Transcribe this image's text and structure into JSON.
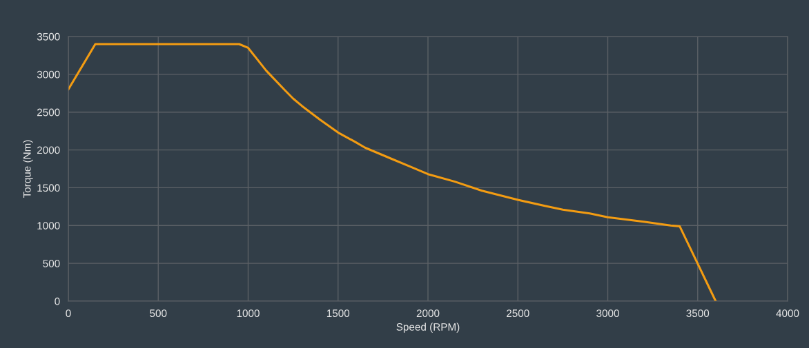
{
  "chart_data": {
    "type": "line",
    "xlabel": "Speed (RPM)",
    "ylabel": "Torque (Nm)",
    "series": [
      {
        "color": "#f39c12",
        "x": [
          0,
          150,
          950,
          1000,
          1050,
          1100,
          1200,
          1250,
          1300,
          1400,
          1500,
          1600,
          1650,
          1800,
          1900,
          2000,
          2150,
          2300,
          2500,
          2650,
          2750,
          2900,
          3000,
          3200,
          3350,
          3400,
          3600
        ],
        "values": [
          2800,
          3400,
          3400,
          3350,
          3200,
          3050,
          2800,
          2680,
          2580,
          2400,
          2230,
          2100,
          2030,
          1880,
          1780,
          1680,
          1580,
          1460,
          1340,
          1260,
          1210,
          1160,
          1110,
          1050,
          1000,
          990,
          0
        ]
      }
    ],
    "xlim": [
      0,
      4000
    ],
    "xticks": [
      0,
      500,
      1000,
      1500,
      2000,
      2500,
      3000,
      3500,
      4000
    ],
    "ylim": [
      0,
      3500
    ],
    "yticks": [
      0,
      500,
      1000,
      1500,
      2000,
      2500,
      3000,
      3500
    ],
    "grid": true,
    "marker": "none",
    "line_style": "solid"
  }
}
